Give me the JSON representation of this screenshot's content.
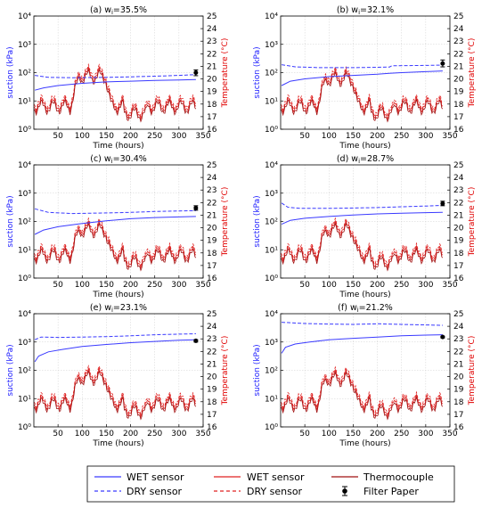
{
  "colors": {
    "blue": "#3a3aff",
    "red": "#e02020",
    "dark_red": "#a01010",
    "black": "#000000"
  },
  "axes_text": {
    "xlabel": "Time (hours)",
    "ylabel_left": "suction (kPa)",
    "ylabel_right": "Temperature (°C)",
    "x_ticks": [
      "50",
      "100",
      "150",
      "200",
      "250",
      "300",
      "350"
    ],
    "y_left_ticks": [
      "10⁰",
      "10¹",
      "10²",
      "10³",
      "10⁴"
    ],
    "y_right_ticks": [
      "16",
      "17",
      "18",
      "19",
      "20",
      "21",
      "22",
      "23",
      "24",
      "25"
    ]
  },
  "legend": {
    "wet_sensor_blue": "WET sensor",
    "dry_sensor_blue": "DRY sensor",
    "wet_sensor_red": "WET sensor",
    "dry_sensor_red": "DRY sensor",
    "thermocouple": "Thermocouple",
    "filter_paper": "Filter Paper"
  },
  "chart_data": [
    {
      "type": "line",
      "title": "(a) w_i=35.5%",
      "title_main": "(a) w",
      "title_sub": "i",
      "title_tail": "=35.5%",
      "xlim": [
        0,
        350
      ],
      "ylim_left": [
        1,
        10000
      ],
      "ylim_right": [
        16,
        25
      ],
      "y_left_scale": "log",
      "wet_suction": [
        [
          2,
          24
        ],
        [
          20,
          29
        ],
        [
          50,
          35
        ],
        [
          100,
          42
        ],
        [
          150,
          47
        ],
        [
          200,
          50
        ],
        [
          250,
          53
        ],
        [
          300,
          55
        ],
        [
          335,
          57
        ]
      ],
      "dry_suction": [
        [
          2,
          80
        ],
        [
          30,
          68
        ],
        [
          80,
          66
        ],
        [
          150,
          68
        ],
        [
          200,
          71
        ],
        [
          250,
          75
        ],
        [
          300,
          80
        ],
        [
          335,
          85
        ]
      ],
      "filter_paper": {
        "x": 335,
        "y": 100,
        "err_low": 78,
        "err_high": 125
      },
      "temp_base": 17.8,
      "temp_peak": 20.2
    },
    {
      "type": "line",
      "title": "(b) w_i=32.1%",
      "title_main": "(b) w",
      "title_sub": "i",
      "title_tail": "=32.1%",
      "xlim": [
        0,
        350
      ],
      "ylim_left": [
        1,
        10000
      ],
      "ylim_right": [
        16,
        25
      ],
      "y_left_scale": "log",
      "wet_suction": [
        [
          2,
          35
        ],
        [
          20,
          50
        ],
        [
          50,
          60
        ],
        [
          100,
          72
        ],
        [
          150,
          80
        ],
        [
          200,
          88
        ],
        [
          225,
          95
        ],
        [
          250,
          100
        ],
        [
          300,
          108
        ],
        [
          335,
          115
        ]
      ],
      "dry_suction": [
        [
          2,
          190
        ],
        [
          30,
          160
        ],
        [
          80,
          150
        ],
        [
          150,
          150
        ],
        [
          200,
          155
        ],
        [
          225,
          158
        ],
        [
          230,
          175
        ],
        [
          300,
          180
        ],
        [
          335,
          185
        ]
      ],
      "filter_paper": {
        "x": 335,
        "y": 210,
        "err_low": 160,
        "err_high": 280
      },
      "temp_base": 17.8,
      "temp_peak": 20.0
    },
    {
      "type": "line",
      "title": "(c) w_i=30.4%",
      "title_main": "(c) w",
      "title_sub": "i",
      "title_tail": "=30.4%",
      "xlim": [
        0,
        350
      ],
      "ylim_left": [
        1,
        10000
      ],
      "ylim_right": [
        16,
        25
      ],
      "y_left_scale": "log",
      "wet_suction": [
        [
          2,
          35
        ],
        [
          20,
          50
        ],
        [
          50,
          65
        ],
        [
          100,
          85
        ],
        [
          150,
          105
        ],
        [
          200,
          125
        ],
        [
          250,
          138
        ],
        [
          300,
          145
        ],
        [
          335,
          150
        ]
      ],
      "dry_suction": [
        [
          2,
          280
        ],
        [
          30,
          210
        ],
        [
          80,
          190
        ],
        [
          150,
          200
        ],
        [
          200,
          210
        ],
        [
          250,
          225
        ],
        [
          300,
          235
        ],
        [
          335,
          240
        ]
      ],
      "filter_paper": {
        "x": 335,
        "y": 300,
        "err_low": 250,
        "err_high": 360
      },
      "temp_base": 17.8,
      "temp_peak": 19.8
    },
    {
      "type": "line",
      "title": "(d) w_i=28.7%",
      "title_main": "(d) w",
      "title_sub": "i",
      "title_tail": "=28.7%",
      "xlim": [
        0,
        350
      ],
      "ylim_left": [
        1,
        10000
      ],
      "ylim_right": [
        16,
        25
      ],
      "y_left_scale": "log",
      "wet_suction": [
        [
          2,
          80
        ],
        [
          20,
          110
        ],
        [
          50,
          130
        ],
        [
          100,
          150
        ],
        [
          150,
          170
        ],
        [
          200,
          185
        ],
        [
          250,
          195
        ],
        [
          300,
          205
        ],
        [
          335,
          210
        ]
      ],
      "dry_suction": [
        [
          2,
          450
        ],
        [
          15,
          320
        ],
        [
          40,
          290
        ],
        [
          100,
          290
        ],
        [
          150,
          300
        ],
        [
          200,
          310
        ],
        [
          250,
          330
        ],
        [
          300,
          350
        ],
        [
          335,
          370
        ]
      ],
      "filter_paper": {
        "x": 335,
        "y": 430,
        "err_low": 360,
        "err_high": 520
      },
      "temp_base": 17.8,
      "temp_peak": 19.8
    },
    {
      "type": "line",
      "title": "(e) w_i=23.1%",
      "title_main": "(e) w",
      "title_sub": "i",
      "title_tail": "=23.1%",
      "xlim": [
        0,
        350
      ],
      "ylim_left": [
        1,
        10000
      ],
      "ylim_right": [
        16,
        25
      ],
      "y_left_scale": "log",
      "wet_suction": [
        [
          2,
          200
        ],
        [
          10,
          320
        ],
        [
          30,
          450
        ],
        [
          60,
          550
        ],
        [
          100,
          700
        ],
        [
          150,
          820
        ],
        [
          200,
          950
        ],
        [
          250,
          1050
        ],
        [
          300,
          1150
        ],
        [
          335,
          1200
        ]
      ],
      "dry_suction": [
        [
          2,
          1200
        ],
        [
          15,
          1500
        ],
        [
          50,
          1450
        ],
        [
          100,
          1500
        ],
        [
          150,
          1550
        ],
        [
          200,
          1650
        ],
        [
          250,
          1800
        ],
        [
          300,
          1900
        ],
        [
          335,
          1950
        ]
      ],
      "filter_paper": {
        "x": 335,
        "y": 1100,
        "err_low": 1000,
        "err_high": 1200
      },
      "temp_base": 17.8,
      "temp_peak": 19.9
    },
    {
      "type": "line",
      "title": "(f) w_i=21.2%",
      "title_main": "(f) w",
      "title_sub": "i",
      "title_tail": "=21.2%",
      "xlim": [
        0,
        350
      ],
      "ylim_left": [
        1,
        10000
      ],
      "ylim_right": [
        16,
        25
      ],
      "y_left_scale": "log",
      "wet_suction": [
        [
          2,
          400
        ],
        [
          10,
          650
        ],
        [
          30,
          850
        ],
        [
          60,
          1000
        ],
        [
          100,
          1200
        ],
        [
          150,
          1350
        ],
        [
          200,
          1500
        ],
        [
          250,
          1650
        ],
        [
          300,
          1750
        ],
        [
          335,
          1800
        ]
      ],
      "dry_suction": [
        [
          2,
          5000
        ],
        [
          50,
          4500
        ],
        [
          100,
          4300
        ],
        [
          150,
          4200
        ],
        [
          200,
          4400
        ],
        [
          250,
          4200
        ],
        [
          300,
          4000
        ],
        [
          335,
          3900
        ]
      ],
      "filter_paper": {
        "x": 335,
        "y": 1500,
        "err_low": 1400,
        "err_high": 1600
      },
      "temp_base": 17.8,
      "temp_peak": 19.8
    }
  ]
}
